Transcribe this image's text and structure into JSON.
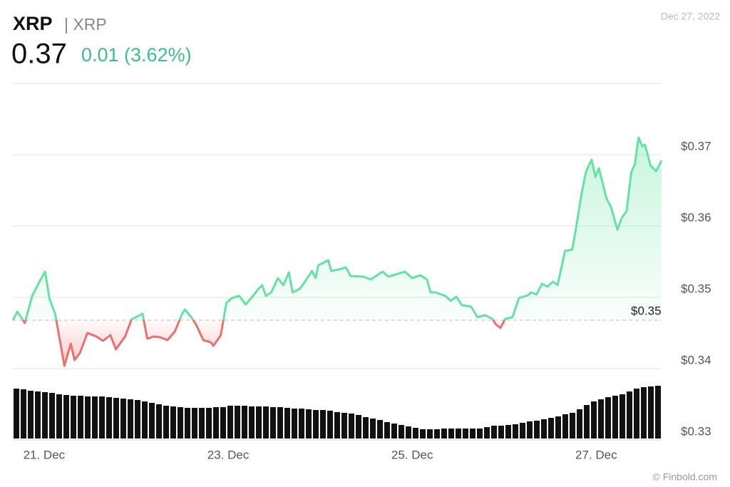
{
  "chart_data": {
    "type": "price-line",
    "title": "XRP",
    "subtitle": "| XRP",
    "price": 0.37,
    "change": "0.01 (3.62%)",
    "date": "Dec 27, 2022",
    "source": "© Finbold.com",
    "x": [
      20.66,
      20.71,
      20.79,
      20.87,
      20.95,
      21.01,
      21.06,
      21.12,
      21.22,
      21.29,
      21.33,
      21.39,
      21.47,
      21.57,
      21.64,
      21.72,
      21.78,
      21.88,
      21.95,
      22.07,
      22.12,
      22.19,
      22.26,
      22.34,
      22.42,
      22.5,
      22.53,
      22.6,
      22.65,
      22.73,
      22.81,
      22.84,
      22.92,
      22.98,
      23.04,
      23.12,
      23.19,
      23.27,
      23.33,
      23.37,
      23.41,
      23.47,
      23.54,
      23.6,
      23.66,
      23.7,
      23.78,
      23.85,
      23.91,
      23.95,
      23.98,
      24.09,
      24.12,
      24.2,
      24.28,
      24.33,
      24.47,
      24.55,
      24.63,
      24.68,
      24.74,
      24.82,
      24.92,
      25.0,
      25.09,
      25.16,
      25.2,
      25.25,
      25.36,
      25.42,
      25.48,
      25.54,
      25.64,
      25.71,
      25.79,
      25.87,
      25.91,
      25.96,
      26.01,
      26.09,
      26.16,
      26.26,
      26.29,
      26.35,
      26.41,
      26.47,
      26.53,
      26.58,
      26.66,
      26.74,
      26.78,
      26.84,
      26.89,
      26.95,
      26.99,
      27.03,
      27.11,
      27.16,
      27.23,
      27.28,
      27.33,
      27.38,
      27.42,
      27.46,
      27.5,
      27.53,
      27.59,
      27.65,
      27.71
    ],
    "series": [
      {
        "color": "#62e3a3",
        "color_below": "#ee6f6d",
        "values": [
          0.3468,
          0.348,
          0.3464,
          0.3502,
          0.3522,
          0.3536,
          0.3497,
          0.3477,
          0.3404,
          0.3435,
          0.3412,
          0.3422,
          0.345,
          0.3445,
          0.3439,
          0.3447,
          0.3427,
          0.3445,
          0.3469,
          0.3477,
          0.3442,
          0.3445,
          0.3444,
          0.344,
          0.3452,
          0.3477,
          0.3483,
          0.3472,
          0.3462,
          0.344,
          0.3437,
          0.3432,
          0.3447,
          0.3492,
          0.3499,
          0.3502,
          0.349,
          0.3502,
          0.3512,
          0.3517,
          0.3502,
          0.3507,
          0.3527,
          0.3517,
          0.3535,
          0.3507,
          0.3512,
          0.3525,
          0.3537,
          0.3527,
          0.3545,
          0.3552,
          0.3537,
          0.3539,
          0.3542,
          0.353,
          0.3529,
          0.3525,
          0.3532,
          0.3536,
          0.3529,
          0.3532,
          0.3536,
          0.3527,
          0.3531,
          0.3525,
          0.3507,
          0.3507,
          0.3502,
          0.3495,
          0.3501,
          0.3489,
          0.3487,
          0.3472,
          0.3475,
          0.347,
          0.3462,
          0.3457,
          0.347,
          0.3472,
          0.3499,
          0.3503,
          0.3507,
          0.3504,
          0.3519,
          0.3515,
          0.3522,
          0.3517,
          0.3565,
          0.3567,
          0.3597,
          0.3645,
          0.3677,
          0.3693,
          0.3669,
          0.3681,
          0.3639,
          0.3627,
          0.3595,
          0.3612,
          0.3621,
          0.3675,
          0.3687,
          0.3724,
          0.3712,
          0.3714,
          0.3685,
          0.3677,
          0.3692
        ]
      }
    ],
    "reference": {
      "value": 0.3468,
      "label": "$0.35"
    },
    "xlim": [
      20.66,
      27.71
    ],
    "xticks": [
      {
        "value": 21,
        "label": "21. Dec"
      },
      {
        "value": 23,
        "label": "23. Dec"
      },
      {
        "value": 25,
        "label": "25. Dec"
      },
      {
        "value": 27,
        "label": "27. Dec"
      }
    ],
    "ylim": [
      0.33,
      0.38
    ],
    "yticks": [
      {
        "value": 0.33,
        "label": "$0.33"
      },
      {
        "value": 0.34,
        "label": "$0.34"
      },
      {
        "value": 0.35,
        "label": "$0.35"
      },
      {
        "value": 0.36,
        "label": "$0.36"
      },
      {
        "value": 0.37,
        "label": "$0.37"
      }
    ],
    "grid": true,
    "volume": {
      "color": "#111111",
      "ylim": [
        0,
        100
      ],
      "values": [
        70,
        69,
        67,
        66,
        65,
        64,
        62,
        61,
        60,
        60,
        59,
        59,
        59,
        58,
        57,
        56,
        55,
        54,
        52,
        50,
        48,
        46,
        45,
        44,
        43,
        43,
        43,
        43,
        44,
        44,
        46,
        46,
        46,
        45,
        45,
        45,
        44,
        44,
        43,
        42,
        42,
        41,
        40,
        40,
        39,
        37,
        36,
        35,
        33,
        30,
        28,
        26,
        23,
        21,
        19,
        17,
        15,
        13,
        13,
        13,
        14,
        14,
        14,
        14,
        14,
        14,
        16,
        18,
        18,
        19,
        20,
        22,
        24,
        25,
        27,
        29,
        31,
        34,
        36,
        41,
        47,
        52,
        55,
        58,
        60,
        62,
        66,
        70,
        72,
        73,
        74
      ]
    }
  }
}
